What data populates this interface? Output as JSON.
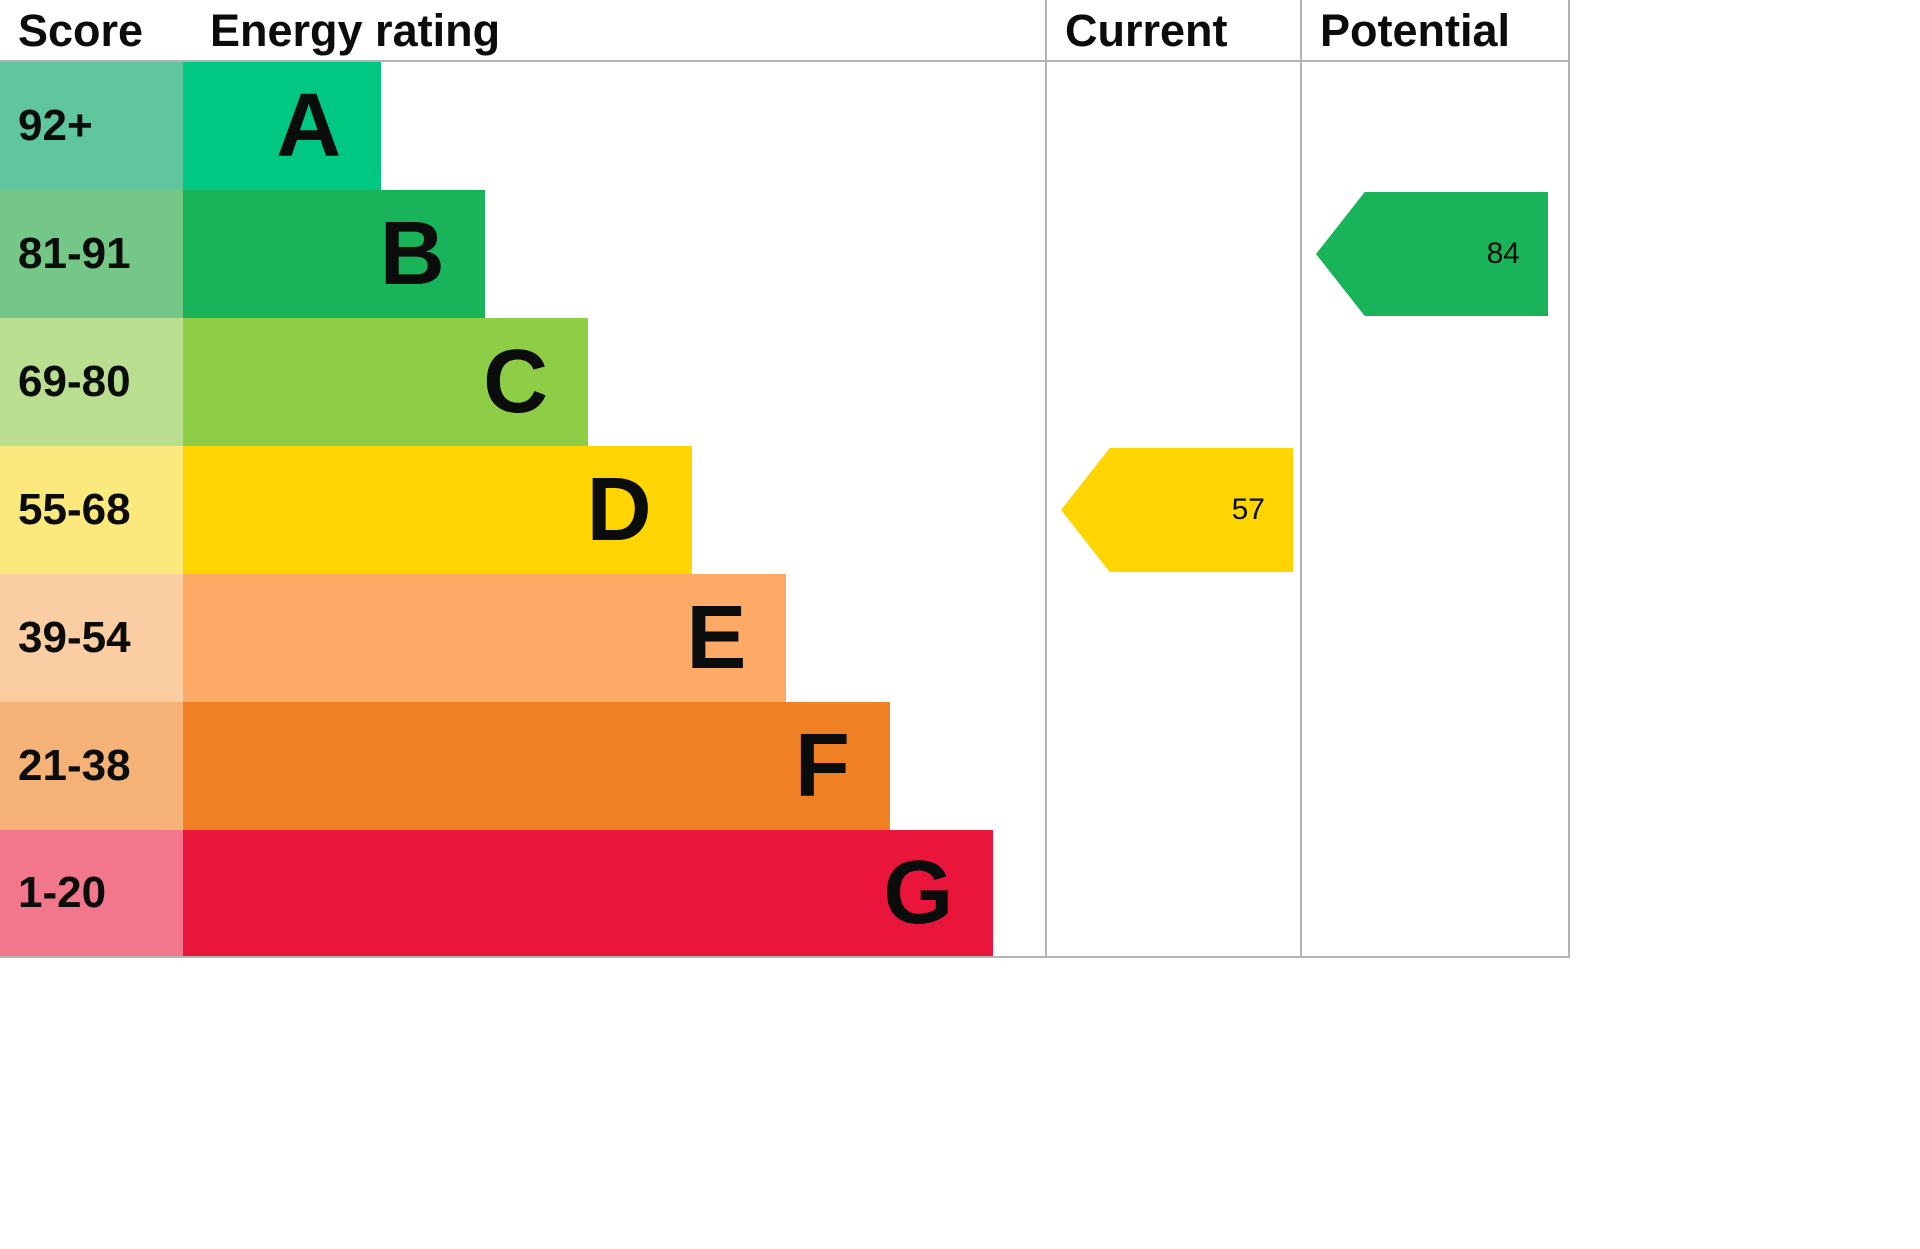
{
  "header": {
    "score": "Score",
    "energy_rating": "Energy rating",
    "current": "Current",
    "potential": "Potential"
  },
  "chart_data": {
    "type": "bar",
    "categories": [
      "A",
      "B",
      "C",
      "D",
      "E",
      "F",
      "G"
    ],
    "bands": [
      {
        "score": "92+",
        "letter": "A",
        "color": "#00c781",
        "tint_color": "#5fc69e",
        "bar_width_pct": 23
      },
      {
        "score": "81-91",
        "letter": "B",
        "color": "#19b459",
        "tint_color": "#75c787",
        "bar_width_pct": 35
      },
      {
        "score": "69-80",
        "letter": "C",
        "color": "#8dce46",
        "tint_color": "#b9de90",
        "bar_width_pct": 47
      },
      {
        "score": "55-68",
        "letter": "D",
        "color": "#ffd500",
        "tint_color": "#fce97e",
        "bar_width_pct": 59
      },
      {
        "score": "39-54",
        "letter": "E",
        "color": "#fcaa65",
        "tint_color": "#fbcda2",
        "bar_width_pct": 70
      },
      {
        "score": "21-38",
        "letter": "F",
        "color": "#ef8023",
        "tint_color": "#f5b277",
        "bar_width_pct": 82
      },
      {
        "score": "1-20",
        "letter": "G",
        "color": "#e9153b",
        "tint_color": "#f2778d",
        "bar_width_pct": 94
      }
    ],
    "current": {
      "value": 57,
      "band_letter": "D",
      "band_index": 3,
      "color": "#ffd500"
    },
    "potential": {
      "value": 84,
      "band_letter": "B",
      "band_index": 1,
      "color": "#19b459"
    },
    "legend_position": "none",
    "grid": false
  }
}
